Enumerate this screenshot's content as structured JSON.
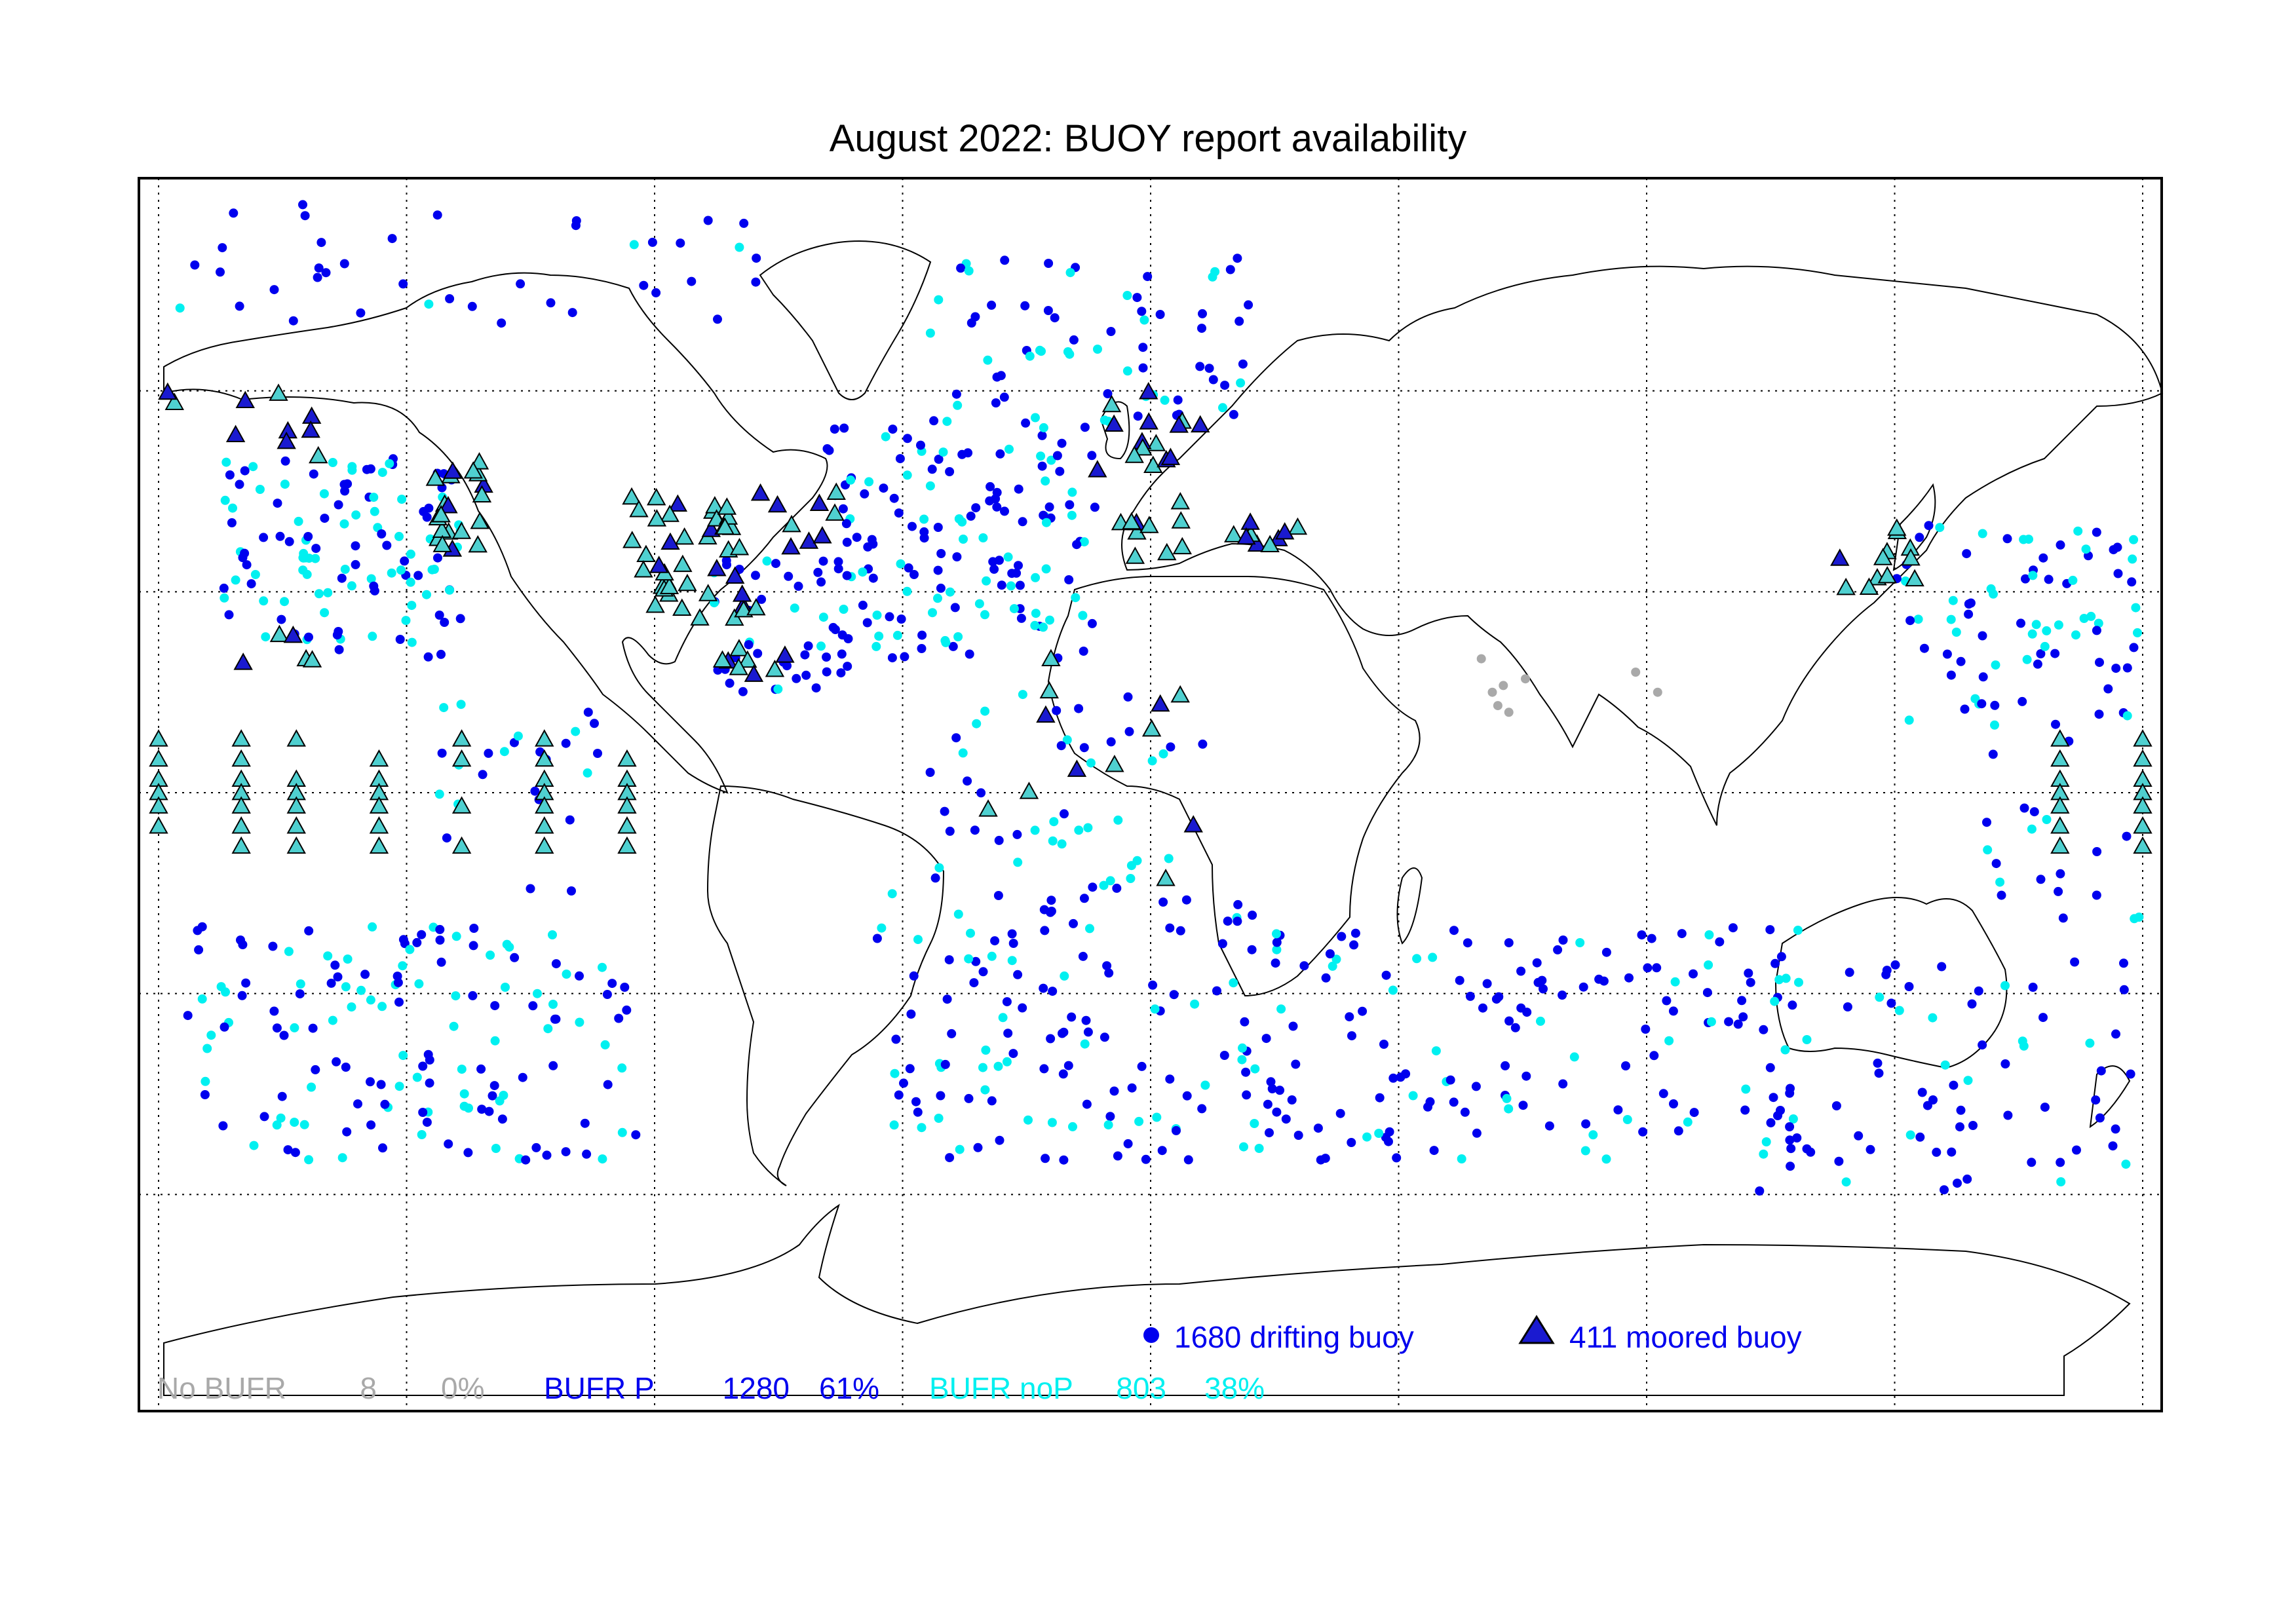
{
  "title": "August 2022: BUOY report availability",
  "colors": {
    "no_bufr": "#a9a9a9",
    "bufr_p": "#0000ee",
    "bufr_nop": "#00f0f0",
    "moored_fill": "#4fd0d0",
    "moored_dark": "#1a1ad0",
    "frame": "#000000",
    "coast": "#000000"
  },
  "legend": {
    "drifting": "1680 drifting buoy",
    "moored": "411 moored buoy"
  },
  "stats": [
    {
      "label": "No BUFR",
      "count": "8",
      "pct": "0%",
      "color": "#a9a9a9"
    },
    {
      "label": "BUFR P",
      "count": "1280",
      "pct": "61%",
      "color": "#0000ee"
    },
    {
      "label": "BUFR noP",
      "count": "803",
      "pct": "38%",
      "color": "#00f0f0"
    }
  ],
  "map": {
    "projection": "equirectangular",
    "lon_range": [
      -180,
      180
    ],
    "lat_range": [
      -90,
      90
    ],
    "graticule_lon_step": 45,
    "graticule_lat_step": 30,
    "grid_style": "dotted",
    "drifting_clusters": [
      {
        "lon": [
          -60,
          -10
        ],
        "lat": [
          20,
          55
        ],
        "n": 150,
        "mix": 0.6
      },
      {
        "lon": [
          -170,
          -125
        ],
        "lat": [
          20,
          50
        ],
        "n": 120,
        "mix": 0.55
      },
      {
        "lon": [
          -80,
          -55
        ],
        "lat": [
          15,
          35
        ],
        "n": 40,
        "mix": 0.8
      },
      {
        "lon": [
          -40,
          20
        ],
        "lat": [
          55,
          80
        ],
        "n": 70,
        "mix": 0.7
      },
      {
        "lon": [
          135,
          180
        ],
        "lat": [
          10,
          40
        ],
        "n": 80,
        "mix": 0.5
      },
      {
        "lon": [
          -175,
          -90
        ],
        "lat": [
          -55,
          -20
        ],
        "n": 150,
        "mix": 0.55
      },
      {
        "lon": [
          -50,
          20
        ],
        "lat": [
          -55,
          -15
        ],
        "n": 130,
        "mix": 0.6
      },
      {
        "lon": [
          20,
          120
        ],
        "lat": [
          -55,
          -20
        ],
        "n": 160,
        "mix": 0.8
      },
      {
        "lon": [
          110,
          180
        ],
        "lat": [
          -60,
          -25
        ],
        "n": 70,
        "mix": 0.8
      },
      {
        "lon": [
          -40,
          10
        ],
        "lat": [
          -15,
          15
        ],
        "n": 45,
        "mix": 0.45
      },
      {
        "lon": [
          -180,
          -60
        ],
        "lat": [
          70,
          88
        ],
        "n": 40,
        "mix": 0.8
      },
      {
        "lon": [
          -130,
          -100
        ],
        "lat": [
          -15,
          15
        ],
        "n": 25,
        "mix": 0.5
      },
      {
        "lon": [
          150,
          180
        ],
        "lat": [
          -20,
          10
        ],
        "n": 20,
        "mix": 0.6
      }
    ],
    "no_bufr_points": [
      {
        "lon": 60,
        "lat": 20
      },
      {
        "lon": 62,
        "lat": 15
      },
      {
        "lon": 63,
        "lat": 13
      },
      {
        "lon": 64,
        "lat": 16
      },
      {
        "lon": 68,
        "lat": 17
      },
      {
        "lon": 88,
        "lat": 18
      },
      {
        "lon": 92,
        "lat": 15
      },
      {
        "lon": 65,
        "lat": 12
      }
    ],
    "moored_groups": [
      {
        "lon": [
          -130,
          -120
        ],
        "lat": [
          35,
          50
        ],
        "n": 20,
        "dark": 0.3
      },
      {
        "lon": [
          -95,
          -70
        ],
        "lat": [
          25,
          45
        ],
        "n": 40,
        "dark": 0.35
      },
      {
        "lon": [
          -78,
          -55
        ],
        "lat": [
          35,
          45
        ],
        "n": 12,
        "dark": 0.3
      },
      {
        "lon": [
          -80,
          -65
        ],
        "lat": [
          17,
          22
        ],
        "n": 8,
        "dark": 0.5
      },
      {
        "lon": [
          -180,
          -150
        ],
        "lat": [
          50,
          60
        ],
        "n": 10,
        "dark": 0.6
      },
      {
        "lon": [
          -165,
          -150
        ],
        "lat": [
          18,
          25
        ],
        "n": 5,
        "dark": 0.5
      },
      {
        "lon": [
          -10,
          20
        ],
        "lat": [
          35,
          45
        ],
        "n": 15,
        "dark": 0.2
      },
      {
        "lon": [
          -10,
          10
        ],
        "lat": [
          48,
          60
        ],
        "n": 15,
        "dark": 0.5
      },
      {
        "lon": [
          125,
          140
        ],
        "lat": [
          30,
          40
        ],
        "n": 12,
        "dark": 0.1
      },
      {
        "lon": [
          20,
          30
        ],
        "lat": [
          35,
          40
        ],
        "n": 4,
        "dark": 0.4
      },
      {
        "lon": [
          -30,
          10
        ],
        "lat": [
          -15,
          20
        ],
        "n": 12,
        "dark": 0.3
      }
    ],
    "tao_array_lons": [
      -180,
      -165,
      -155,
      -140,
      -125,
      -110,
      -95,
      165,
      180
    ],
    "tao_array_lats": [
      8,
      5,
      2,
      0,
      -2,
      -5,
      -8
    ]
  }
}
